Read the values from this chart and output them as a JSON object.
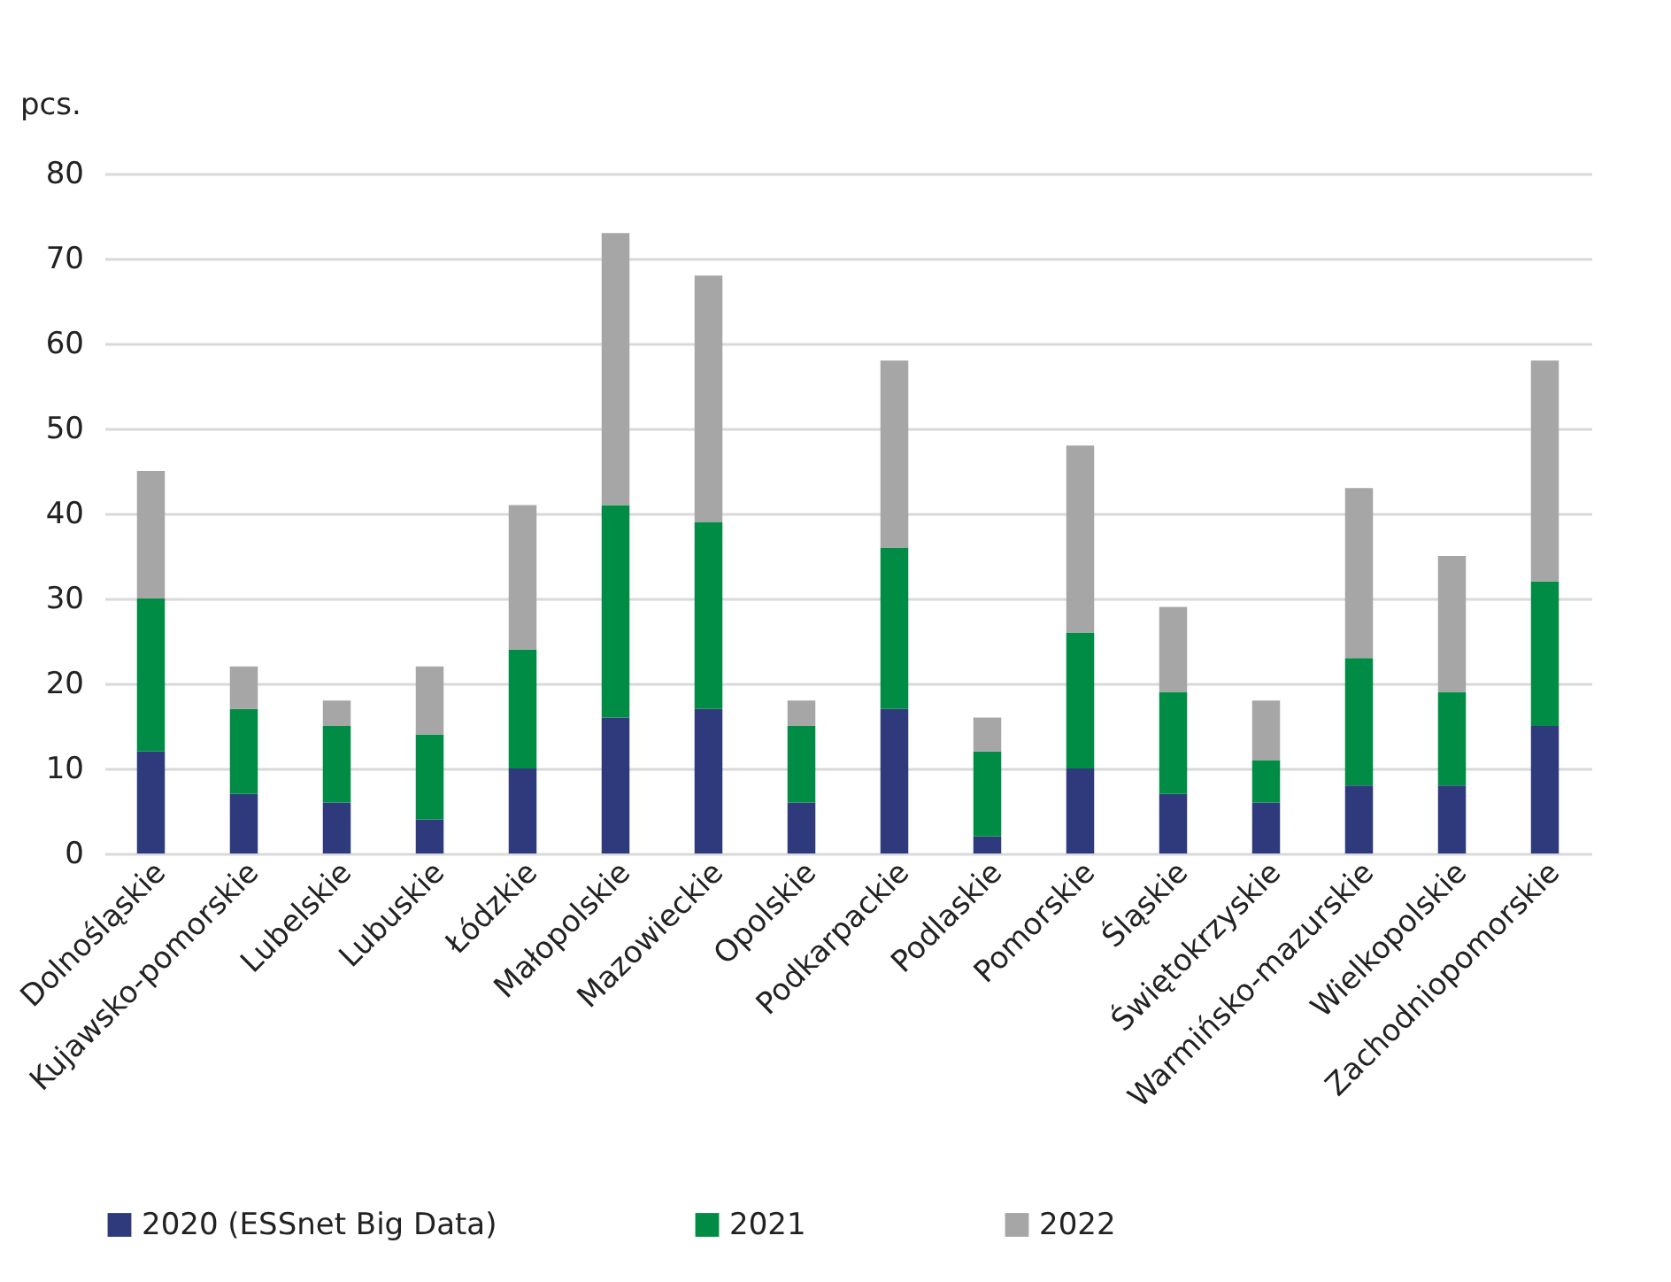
{
  "chart_data": {
    "type": "bar",
    "stacked": true,
    "ylabel": "pcs.",
    "categories": [
      "Dolnośląskie",
      "Kujawsko-pomorskie",
      "Lubelskie",
      "Lubuskie",
      "Łódzkie",
      "Małopolskie",
      "Mazowieckie",
      "Opolskie",
      "Podkarpackie",
      "Podlaskie",
      "Pomorskie",
      "Śląskie",
      "Świętokrzyskie",
      "Warmińsko-mazurskie",
      "Wielkopolskie",
      "Zachodniopomorskie"
    ],
    "series": [
      {
        "name": "2020 (ESSnet Big Data)",
        "color": "#2e3a7c",
        "values": [
          12,
          7,
          6,
          4,
          10,
          16,
          17,
          6,
          17,
          2,
          10,
          7,
          6,
          8,
          8,
          15
        ]
      },
      {
        "name": "2021",
        "color": "#008c45",
        "values": [
          18,
          10,
          9,
          10,
          14,
          25,
          22,
          9,
          19,
          10,
          16,
          12,
          5,
          15,
          11,
          17
        ]
      },
      {
        "name": "2022",
        "color": "#a6a6a6",
        "values": [
          15,
          5,
          3,
          8,
          17,
          32,
          29,
          3,
          22,
          4,
          22,
          10,
          7,
          20,
          16,
          26
        ]
      }
    ],
    "ylim": [
      0,
      80
    ],
    "yticks": [
      0,
      10,
      20,
      30,
      40,
      50,
      60,
      70,
      80
    ],
    "grid": "y",
    "legend": "bottom"
  }
}
